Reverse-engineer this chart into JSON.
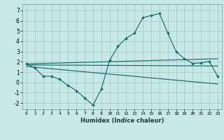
{
  "xlabel": "Humidex (Indice chaleur)",
  "bg_color": "#c8e8e8",
  "grid_color": "#a0c8c8",
  "line_color": "#1a6b6b",
  "xlim": [
    -0.5,
    23.5
  ],
  "ylim": [
    -2.6,
    7.6
  ],
  "xticks": [
    0,
    1,
    2,
    3,
    4,
    5,
    6,
    7,
    8,
    9,
    10,
    11,
    12,
    13,
    14,
    15,
    16,
    17,
    18,
    19,
    20,
    21,
    22,
    23
  ],
  "yticks": [
    -2,
    -1,
    0,
    1,
    2,
    3,
    4,
    5,
    6,
    7
  ],
  "series1_x": [
    0,
    1,
    2,
    3,
    4,
    5,
    6,
    7,
    8,
    9,
    10,
    11,
    12,
    13,
    14,
    15,
    16,
    17,
    18,
    19,
    20,
    21,
    22,
    23
  ],
  "series1_y": [
    1.8,
    1.4,
    0.6,
    0.6,
    0.3,
    -0.3,
    -0.8,
    -1.5,
    -2.2,
    -0.65,
    2.15,
    3.5,
    4.3,
    4.8,
    6.3,
    6.5,
    6.7,
    4.8,
    3.0,
    2.3,
    1.85,
    1.9,
    2.05,
    0.6
  ],
  "series2_x": [
    0,
    23
  ],
  "series2_y": [
    1.8,
    2.3
  ],
  "series3_x": [
    0,
    23
  ],
  "series3_y": [
    1.7,
    1.6
  ],
  "series4_x": [
    0,
    23
  ],
  "series4_y": [
    1.55,
    -0.15
  ]
}
